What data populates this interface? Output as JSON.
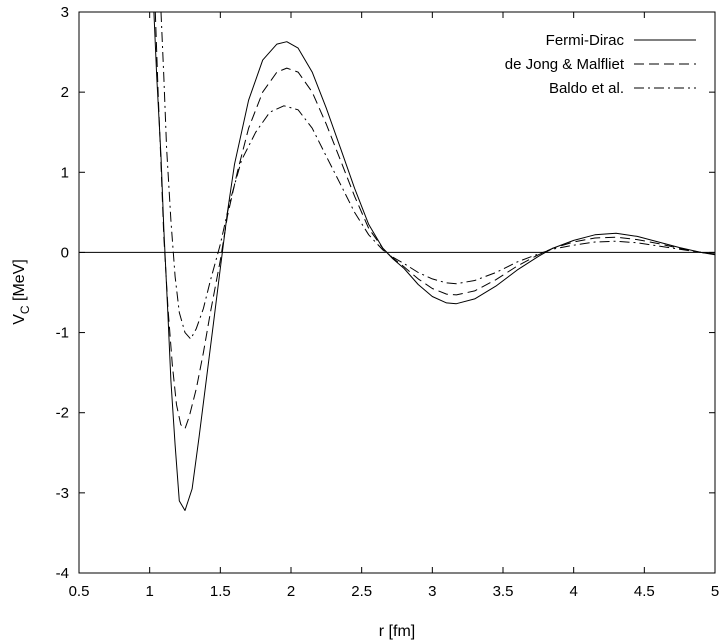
{
  "chart_data": {
    "type": "line",
    "title": "",
    "xlabel": "r [fm]",
    "ylabel_main": "V",
    "ylabel_sub": "C",
    "ylabel_unit": " [MeV]",
    "xlim": [
      0.5,
      5
    ],
    "ylim": [
      -4,
      3
    ],
    "xticks": [
      0.5,
      1,
      1.5,
      2,
      2.5,
      3,
      3.5,
      4,
      4.5,
      5
    ],
    "xtick_labels": [
      "0.5",
      "1",
      "1.5",
      "2",
      "2.5",
      "3",
      "3.5",
      "4",
      "4.5",
      "5"
    ],
    "yticks": [
      -4,
      -3,
      -2,
      -1,
      0,
      1,
      2,
      3
    ],
    "ytick_labels": [
      "-4",
      "-3",
      "-2",
      "-1",
      "0",
      "1",
      "2",
      "3"
    ],
    "zero_line": true,
    "grid": false,
    "legend_position": "top-right",
    "series": [
      {
        "name": "Fermi-Dirac",
        "dash": "solid",
        "points": [
          [
            1.03,
            3.0
          ],
          [
            1.05,
            2.2
          ],
          [
            1.08,
            1.2
          ],
          [
            1.1,
            0.3
          ],
          [
            1.13,
            -0.8
          ],
          [
            1.15,
            -1.6
          ],
          [
            1.18,
            -2.4
          ],
          [
            1.21,
            -3.1
          ],
          [
            1.25,
            -3.22
          ],
          [
            1.3,
            -2.95
          ],
          [
            1.35,
            -2.3
          ],
          [
            1.4,
            -1.6
          ],
          [
            1.45,
            -0.9
          ],
          [
            1.5,
            -0.2
          ],
          [
            1.55,
            0.5
          ],
          [
            1.6,
            1.1
          ],
          [
            1.7,
            1.9
          ],
          [
            1.8,
            2.4
          ],
          [
            1.9,
            2.6
          ],
          [
            1.97,
            2.63
          ],
          [
            2.05,
            2.55
          ],
          [
            2.15,
            2.25
          ],
          [
            2.25,
            1.8
          ],
          [
            2.35,
            1.3
          ],
          [
            2.45,
            0.8
          ],
          [
            2.55,
            0.35
          ],
          [
            2.65,
            0.05
          ],
          [
            2.72,
            -0.08
          ],
          [
            2.8,
            -0.2
          ],
          [
            2.9,
            -0.4
          ],
          [
            3.0,
            -0.55
          ],
          [
            3.1,
            -0.63
          ],
          [
            3.17,
            -0.64
          ],
          [
            3.3,
            -0.58
          ],
          [
            3.45,
            -0.42
          ],
          [
            3.6,
            -0.22
          ],
          [
            3.75,
            -0.05
          ],
          [
            3.85,
            0.05
          ],
          [
            4.0,
            0.15
          ],
          [
            4.15,
            0.22
          ],
          [
            4.3,
            0.24
          ],
          [
            4.45,
            0.2
          ],
          [
            4.6,
            0.13
          ],
          [
            4.75,
            0.06
          ],
          [
            4.9,
            0.0
          ],
          [
            5.0,
            -0.03
          ]
        ]
      },
      {
        "name": "de Jong & Malfliet",
        "dash": "dashed",
        "points": [
          [
            1.04,
            3.0
          ],
          [
            1.06,
            2.0
          ],
          [
            1.08,
            1.1
          ],
          [
            1.1,
            0.2
          ],
          [
            1.13,
            -0.7
          ],
          [
            1.16,
            -1.4
          ],
          [
            1.19,
            -1.9
          ],
          [
            1.22,
            -2.15
          ],
          [
            1.25,
            -2.2
          ],
          [
            1.28,
            -2.05
          ],
          [
            1.33,
            -1.7
          ],
          [
            1.38,
            -1.25
          ],
          [
            1.43,
            -0.75
          ],
          [
            1.5,
            -0.1
          ],
          [
            1.55,
            0.45
          ],
          [
            1.62,
            1.0
          ],
          [
            1.7,
            1.55
          ],
          [
            1.8,
            2.0
          ],
          [
            1.9,
            2.25
          ],
          [
            1.97,
            2.3
          ],
          [
            2.05,
            2.25
          ],
          [
            2.15,
            2.0
          ],
          [
            2.25,
            1.6
          ],
          [
            2.35,
            1.15
          ],
          [
            2.45,
            0.7
          ],
          [
            2.55,
            0.3
          ],
          [
            2.65,
            0.05
          ],
          [
            2.72,
            -0.07
          ],
          [
            2.8,
            -0.18
          ],
          [
            2.9,
            -0.33
          ],
          [
            3.0,
            -0.45
          ],
          [
            3.1,
            -0.52
          ],
          [
            3.17,
            -0.53
          ],
          [
            3.3,
            -0.48
          ],
          [
            3.45,
            -0.34
          ],
          [
            3.6,
            -0.17
          ],
          [
            3.75,
            -0.03
          ],
          [
            3.85,
            0.05
          ],
          [
            4.0,
            0.13
          ],
          [
            4.15,
            0.18
          ],
          [
            4.3,
            0.19
          ],
          [
            4.45,
            0.16
          ],
          [
            4.6,
            0.11
          ],
          [
            4.75,
            0.05
          ],
          [
            4.9,
            0.0
          ],
          [
            5.0,
            -0.02
          ]
        ]
      },
      {
        "name": "Baldo et al.",
        "dash": "dash-dot",
        "points": [
          [
            1.08,
            3.0
          ],
          [
            1.1,
            2.2
          ],
          [
            1.12,
            1.3
          ],
          [
            1.15,
            0.4
          ],
          [
            1.18,
            -0.3
          ],
          [
            1.21,
            -0.75
          ],
          [
            1.25,
            -1.0
          ],
          [
            1.29,
            -1.08
          ],
          [
            1.33,
            -0.95
          ],
          [
            1.38,
            -0.7
          ],
          [
            1.43,
            -0.35
          ],
          [
            1.5,
            0.1
          ],
          [
            1.57,
            0.65
          ],
          [
            1.65,
            1.15
          ],
          [
            1.75,
            1.5
          ],
          [
            1.85,
            1.75
          ],
          [
            1.95,
            1.83
          ],
          [
            2.05,
            1.78
          ],
          [
            2.15,
            1.55
          ],
          [
            2.25,
            1.2
          ],
          [
            2.35,
            0.85
          ],
          [
            2.45,
            0.5
          ],
          [
            2.55,
            0.22
          ],
          [
            2.65,
            0.03
          ],
          [
            2.72,
            -0.06
          ],
          [
            2.8,
            -0.14
          ],
          [
            2.9,
            -0.25
          ],
          [
            3.0,
            -0.33
          ],
          [
            3.1,
            -0.38
          ],
          [
            3.17,
            -0.39
          ],
          [
            3.3,
            -0.35
          ],
          [
            3.45,
            -0.25
          ],
          [
            3.6,
            -0.12
          ],
          [
            3.75,
            -0.02
          ],
          [
            3.85,
            0.04
          ],
          [
            4.0,
            0.09
          ],
          [
            4.15,
            0.13
          ],
          [
            4.3,
            0.14
          ],
          [
            4.45,
            0.12
          ],
          [
            4.6,
            0.08
          ],
          [
            4.75,
            0.04
          ],
          [
            4.9,
            0.0
          ],
          [
            5.0,
            -0.02
          ]
        ]
      }
    ]
  }
}
